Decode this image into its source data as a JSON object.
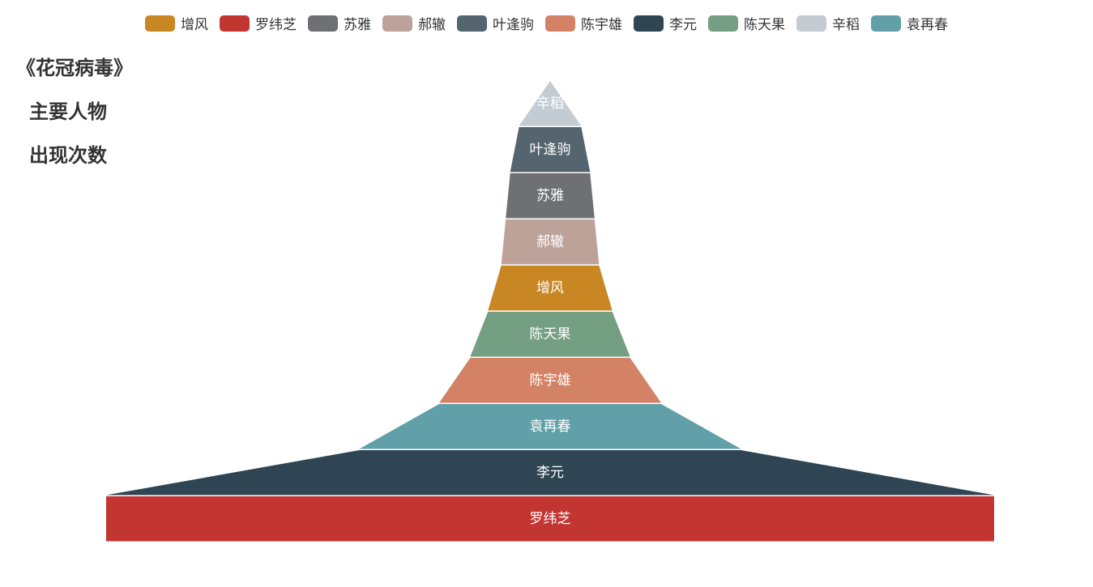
{
  "title": {
    "lines": [
      "《花冠病毒》",
      "主要人物",
      "出现次数"
    ]
  },
  "legend": [
    {
      "name": "增风",
      "color": "#c98723"
    },
    {
      "name": "罗纬芝",
      "color": "#c23531"
    },
    {
      "name": "苏雅",
      "color": "#6e7074"
    },
    {
      "name": "郝辙",
      "color": "#bda29a"
    },
    {
      "name": "叶逢驹",
      "color": "#546570"
    },
    {
      "name": "陈宇雄",
      "color": "#d48265"
    },
    {
      "name": "李元",
      "color": "#2f4554"
    },
    {
      "name": "陈天果",
      "color": "#749f83"
    },
    {
      "name": "辛稻",
      "color": "#c4ccd3"
    },
    {
      "name": "袁再春",
      "color": "#61a0a8"
    }
  ],
  "chart_data": {
    "type": "pyramid",
    "sort": "descending-bottom-to-top",
    "items": [
      {
        "name": "辛稻",
        "value": 0,
        "color": "#c4ccd3"
      },
      {
        "name": "叶逢驹",
        "value": 7,
        "color": "#546570"
      },
      {
        "name": "苏雅",
        "value": 9,
        "color": "#6e7074"
      },
      {
        "name": "郝辙",
        "value": 10,
        "color": "#bda29a"
      },
      {
        "name": "增风",
        "value": 11,
        "color": "#c98723"
      },
      {
        "name": "陈天果",
        "value": 14,
        "color": "#749f83"
      },
      {
        "name": "陈宇雄",
        "value": 18,
        "color": "#d48265"
      },
      {
        "name": "袁再春",
        "value": 25,
        "color": "#61a0a8"
      },
      {
        "name": "李元",
        "value": 43,
        "color": "#2f4554"
      },
      {
        "name": "罗纬芝",
        "value": 100,
        "color": "#c23531"
      }
    ]
  }
}
